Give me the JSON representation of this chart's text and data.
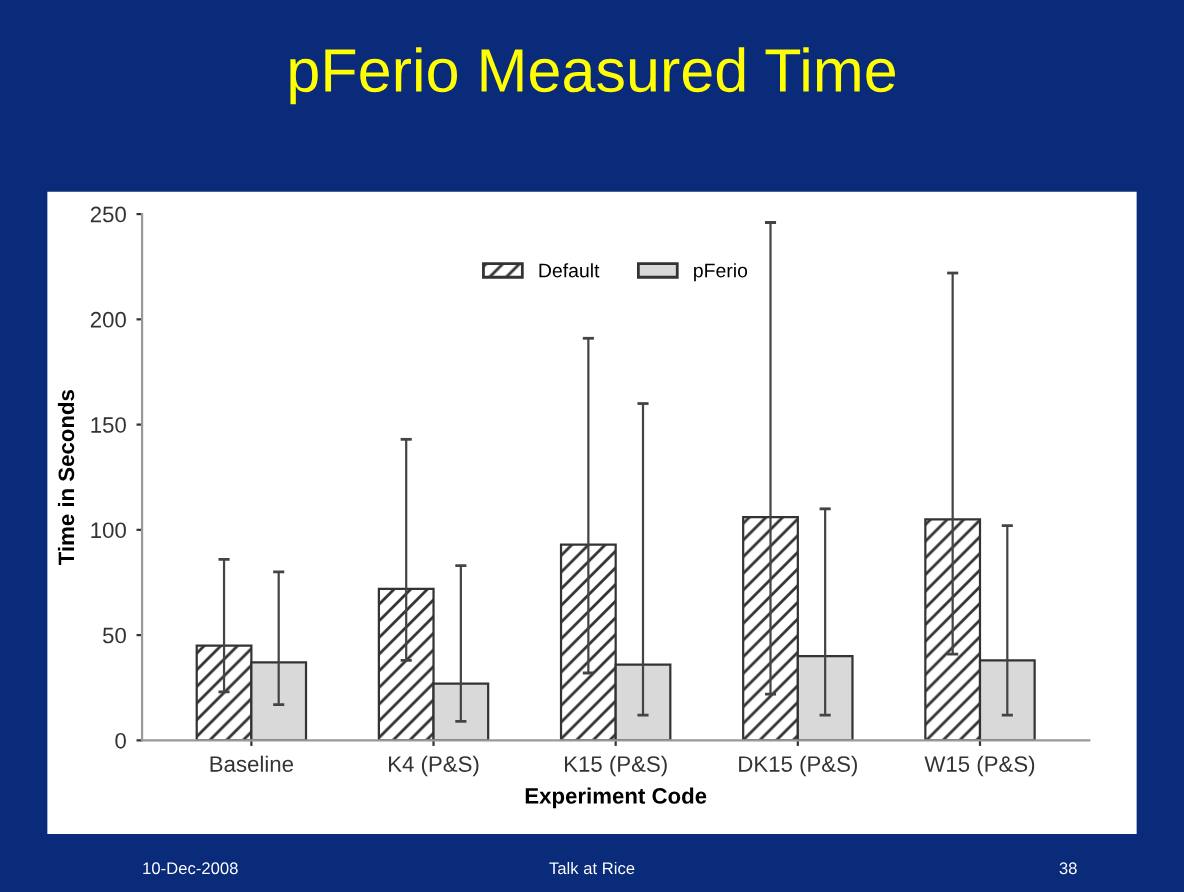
{
  "chart_data": {
    "type": "bar",
    "title": "pFerio Measured Time",
    "xlabel": "Experiment Code",
    "ylabel": "Time in Seconds",
    "categories": [
      "Baseline",
      "K4 (P&S)",
      "K15 (P&S)",
      "DK15 (P&S)",
      "W15 (P&S)"
    ],
    "series": [
      {
        "name": "Default",
        "color": "#333333",
        "values": [
          45,
          72,
          93,
          106,
          105
        ],
        "errors": [
          [
            23,
            86
          ],
          [
            38,
            143
          ],
          [
            32,
            191
          ],
          [
            22,
            246
          ],
          [
            41,
            222
          ]
        ]
      },
      {
        "name": "pFerio",
        "color": "#d9d9d9",
        "values": [
          37,
          27,
          36,
          40,
          38
        ],
        "errors": [
          [
            17,
            80
          ],
          [
            9,
            83
          ],
          [
            12,
            160
          ],
          [
            12,
            110
          ],
          [
            12,
            102
          ]
        ]
      }
    ],
    "ylim": [
      0,
      250
    ],
    "yticks": [
      0,
      50,
      100,
      150,
      200,
      250
    ],
    "grid": false,
    "legend": "top",
    "annotations": [
      "10-Dec-2008",
      "Talk at Rice",
      "38"
    ]
  }
}
